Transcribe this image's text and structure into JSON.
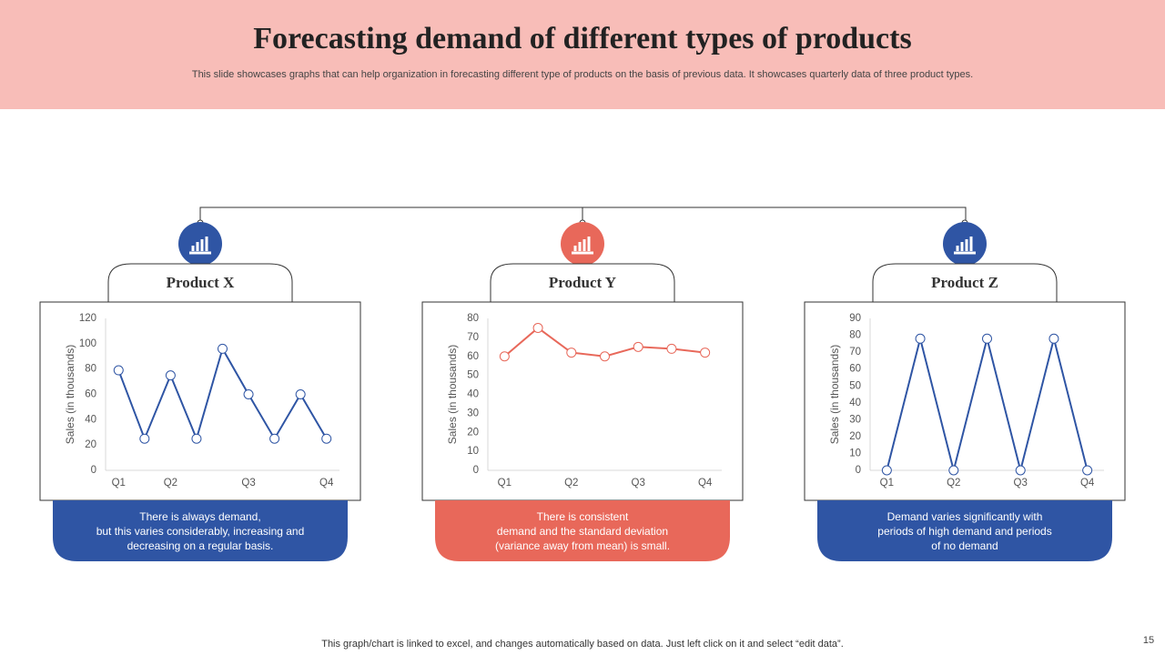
{
  "header": {
    "title": "Forecasting demand of different types of products",
    "subtitle": "This slide showcases graphs that can help organization in forecasting different type  of products on the basis of previous data. It showcases quarterly data of three product types."
  },
  "footer": "This graph/chart is linked to excel,  and changes automatically based on data. Just left click on it and select “edit data”.",
  "page_number": "15",
  "chart_data": [
    {
      "type": "line",
      "title": "Product X",
      "y_label": "Sales (in thousands)",
      "categories": [
        "Q1",
        null,
        "Q2",
        null,
        null,
        "Q3",
        null,
        null,
        "Q4"
      ],
      "values": [
        79,
        25,
        75,
        25,
        96,
        60,
        25,
        60,
        25
      ],
      "color": "#2f55a4",
      "ylim": [
        0,
        120
      ],
      "yticks": [
        0,
        20,
        40,
        60,
        80,
        100,
        120
      ],
      "annotation": [
        "There is always demand,",
        "but this varies considerably, increasing and",
        "decreasing on a regular basis."
      ]
    },
    {
      "type": "line",
      "title": "Product Y",
      "y_label": "Sales (in thousands)",
      "categories": [
        "Q1",
        null,
        "Q2",
        null,
        "Q3",
        null,
        "Q4"
      ],
      "values": [
        60,
        75,
        62,
        60,
        65,
        64,
        62
      ],
      "color": "#e8685a",
      "ylim": [
        0,
        80
      ],
      "yticks": [
        0,
        10,
        20,
        30,
        40,
        50,
        60,
        70,
        80
      ],
      "annotation": [
        "There is consistent",
        "demand and the standard deviation",
        "(variance  away from mean) is small."
      ]
    },
    {
      "type": "line",
      "title": "Product Z",
      "y_label": "Sales (in thousands)",
      "categories": [
        "Q1",
        null,
        "Q2",
        null,
        "Q3",
        null,
        "Q4"
      ],
      "values": [
        0,
        78,
        0,
        78,
        0,
        78,
        0
      ],
      "color": "#2f55a4",
      "ylim": [
        0,
        90
      ],
      "yticks": [
        0,
        10,
        20,
        30,
        40,
        50,
        60,
        70,
        80,
        90
      ],
      "annotation": [
        "Demand varies significantly with",
        "periods of high demand and periods",
        "of no demand"
      ]
    }
  ]
}
